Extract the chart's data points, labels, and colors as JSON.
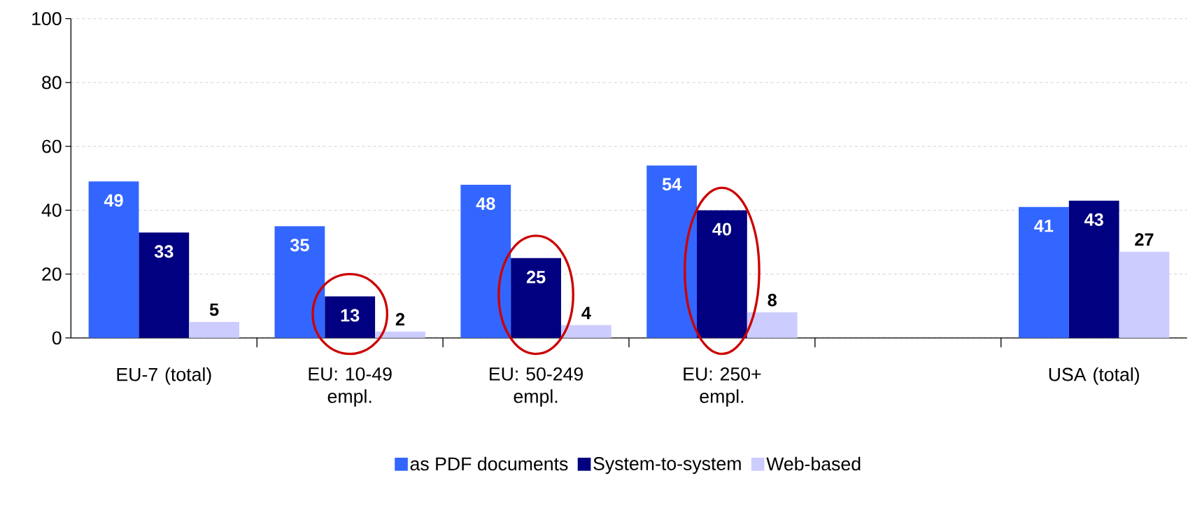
{
  "chart_data": {
    "type": "bar",
    "categories": [
      "EU-7 (total)",
      "EU: 10-49 empl.",
      "EU: 50-249 empl.",
      "EU: 250+ empl.",
      null,
      "USA (total)"
    ],
    "series": [
      {
        "name": "as PDF documents",
        "color": "#3366ff",
        "values": [
          49,
          35,
          48,
          54,
          null,
          41
        ]
      },
      {
        "name": "System-to-system",
        "color": "#000080",
        "values": [
          33,
          13,
          25,
          40,
          null,
          43
        ]
      },
      {
        "name": "Web-based",
        "color": "#ccccff",
        "values": [
          5,
          2,
          4,
          8,
          null,
          27
        ]
      }
    ],
    "ylim": [
      0,
      100
    ],
    "yticks": [
      0,
      20,
      40,
      60,
      80,
      100
    ],
    "grid": "y",
    "legend": "bottom",
    "data_labels": true
  }
}
